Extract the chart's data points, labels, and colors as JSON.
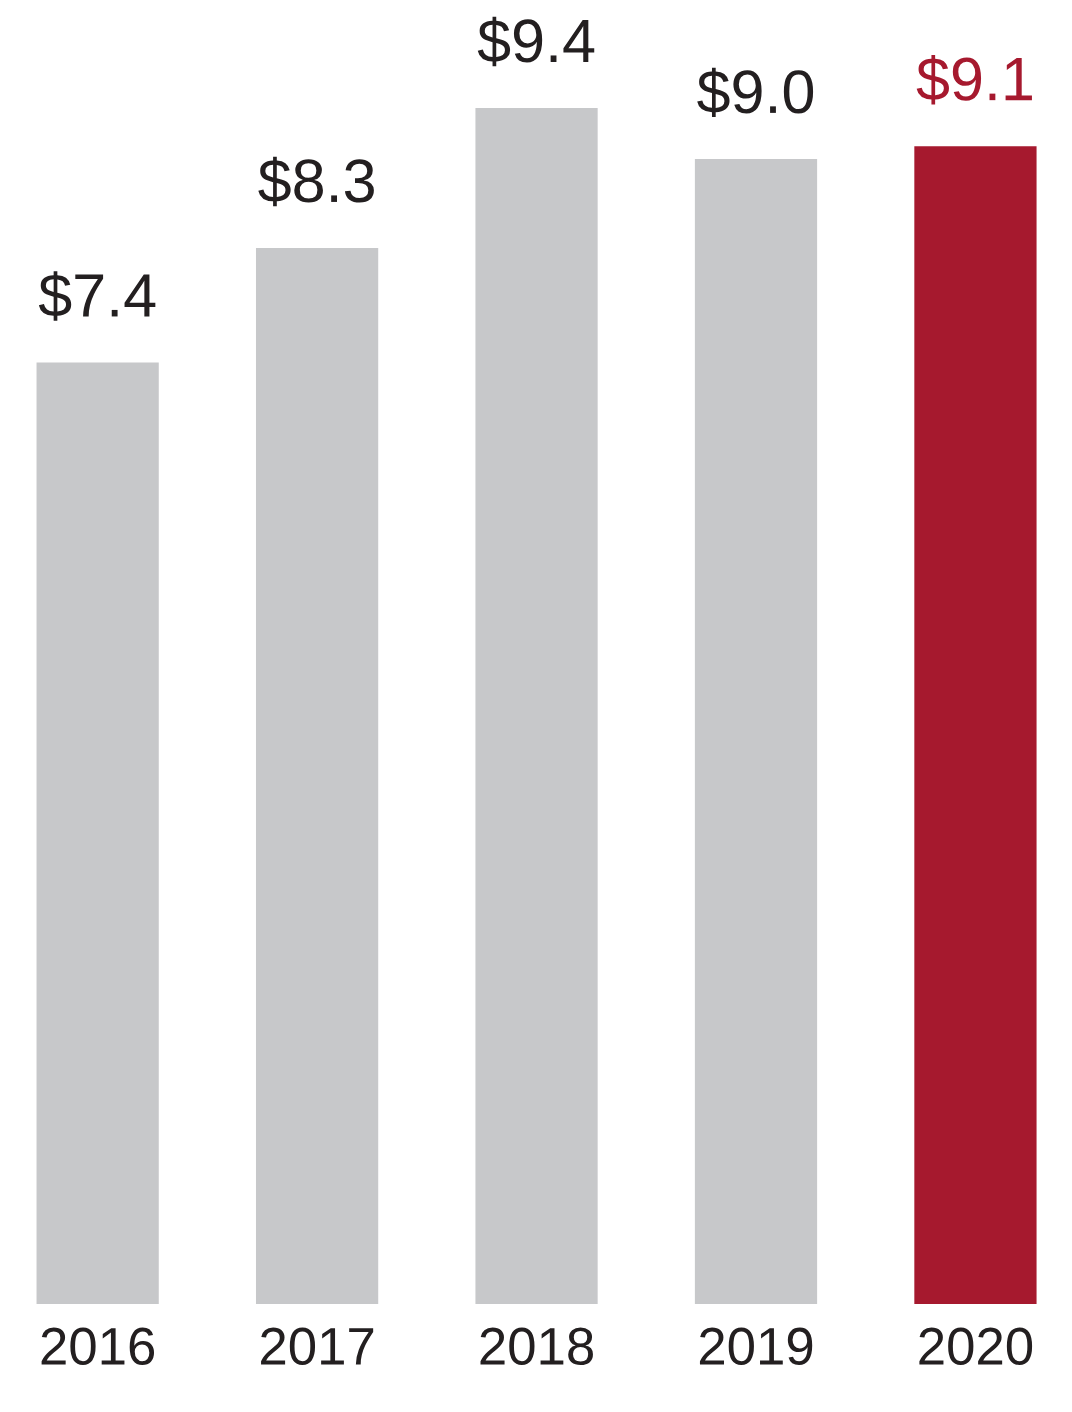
{
  "chart_data": {
    "type": "bar",
    "categories": [
      "2016",
      "2017",
      "2018",
      "2019",
      "2020"
    ],
    "values": [
      7.4,
      8.3,
      9.4,
      9.0,
      9.1
    ],
    "colors": [
      "#c7c8ca",
      "#c7c8ca",
      "#c7c8ca",
      "#c7c8ca",
      "#a6192e"
    ],
    "value_labels": [
      "$7.4",
      "$8.3",
      "$9.4",
      "$9.0",
      "$9.1"
    ],
    "ylim": [
      0,
      9.4
    ],
    "tick_labels": "x",
    "grid": false,
    "legend": false
  }
}
